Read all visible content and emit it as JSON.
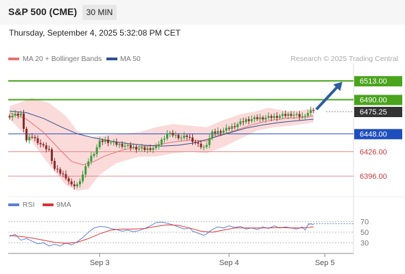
{
  "header": {
    "title": "S&P 500 (CME)",
    "timeframe": "30 MIN"
  },
  "datetime": "Thursday, September 4, 2025 5:32:08 PM CET",
  "legend": {
    "ma20_label": "MA 20 + Bollinger Bands",
    "ma50_label": "MA 50",
    "credit": "Research © 2025 Trading Central",
    "rsi_label": "RSI",
    "rsi_ma_label": "9MA"
  },
  "colors": {
    "bull": "#3a9d3a",
    "bear": "#8a2a2a",
    "ma20": "#e57373",
    "ma50": "#2d4f8f",
    "band_fill": "#fbdada",
    "resistance": "#4aa41d",
    "pivot": "#1f4fbf",
    "support": "#e88a8a",
    "current": "#333333",
    "arrow": "#2d5d9f",
    "rsi": "#5b7fd6"
  },
  "chart_data": [
    {
      "type": "candlestick",
      "title": "S&P 500 (CME)",
      "timeframe": "30 MIN",
      "x_ticks": [
        "Sep 3",
        "Sep 4",
        "Sep 5"
      ],
      "ylim": [
        6370,
        6535
      ],
      "levels": [
        {
          "value": 6513.0,
          "label": "6513.00",
          "kind": "resistance"
        },
        {
          "value": 6490.0,
          "label": "6490.00",
          "kind": "resistance"
        },
        {
          "value": 6475.25,
          "label": "6475.25",
          "kind": "current"
        },
        {
          "value": 6448.0,
          "label": "6448.00",
          "kind": "pivot"
        },
        {
          "value": 6426.0,
          "label": "6426.00",
          "kind": "support"
        },
        {
          "value": 6396.0,
          "label": "6396.00",
          "kind": "support"
        }
      ],
      "series": [
        {
          "name": "MA 20 + Bollinger Bands"
        },
        {
          "name": "MA 50"
        }
      ],
      "close_path": [
        [
          0,
          6470
        ],
        [
          4,
          6472
        ],
        [
          6,
          6440
        ],
        [
          8,
          6445
        ],
        [
          12,
          6432
        ],
        [
          14,
          6428
        ],
        [
          16,
          6405
        ],
        [
          18,
          6400
        ],
        [
          20,
          6395
        ],
        [
          22,
          6384
        ],
        [
          24,
          6385
        ],
        [
          26,
          6398
        ],
        [
          28,
          6415
        ],
        [
          30,
          6425
        ],
        [
          32,
          6438
        ],
        [
          34,
          6440
        ],
        [
          37,
          6436
        ],
        [
          40,
          6434
        ],
        [
          44,
          6431
        ],
        [
          48,
          6429
        ],
        [
          52,
          6431
        ],
        [
          54,
          6440
        ],
        [
          56,
          6448
        ],
        [
          58,
          6447
        ],
        [
          61,
          6443
        ],
        [
          63,
          6445
        ],
        [
          65,
          6440
        ],
        [
          67,
          6434
        ],
        [
          69,
          6431
        ],
        [
          70,
          6436
        ],
        [
          72,
          6449
        ],
        [
          76,
          6452
        ],
        [
          80,
          6458
        ],
        [
          84,
          6465
        ],
        [
          88,
          6467
        ],
        [
          92,
          6468
        ],
        [
          96,
          6470
        ],
        [
          100,
          6472
        ],
        [
          104,
          6469
        ],
        [
          105,
          6472
        ],
        [
          108,
          6477
        ]
      ],
      "ma20_path": [
        [
          0,
          6474
        ],
        [
          6,
          6466
        ],
        [
          12,
          6450
        ],
        [
          18,
          6428
        ],
        [
          22,
          6414
        ],
        [
          26,
          6410
        ],
        [
          30,
          6414
        ],
        [
          34,
          6421
        ],
        [
          40,
          6428
        ],
        [
          46,
          6432
        ],
        [
          52,
          6434
        ],
        [
          58,
          6438
        ],
        [
          64,
          6440
        ],
        [
          70,
          6439
        ],
        [
          74,
          6446
        ],
        [
          80,
          6452
        ],
        [
          86,
          6459
        ],
        [
          92,
          6464
        ],
        [
          98,
          6467
        ],
        [
          104,
          6468
        ],
        [
          108,
          6470
        ]
      ],
      "ma50_path": [
        [
          0,
          6476
        ],
        [
          6,
          6474
        ],
        [
          12,
          6467
        ],
        [
          18,
          6457
        ],
        [
          24,
          6448
        ],
        [
          30,
          6443
        ],
        [
          36,
          6439
        ],
        [
          42,
          6436
        ],
        [
          48,
          6434
        ],
        [
          54,
          6433
        ],
        [
          60,
          6434
        ],
        [
          66,
          6437
        ],
        [
          72,
          6443
        ],
        [
          78,
          6449
        ],
        [
          84,
          6455
        ],
        [
          90,
          6459
        ],
        [
          96,
          6462
        ],
        [
          102,
          6464
        ],
        [
          108,
          6466
        ]
      ],
      "band_upper": [
        [
          0,
          6482
        ],
        [
          8,
          6492
        ],
        [
          14,
          6486
        ],
        [
          20,
          6470
        ],
        [
          24,
          6452
        ],
        [
          28,
          6444
        ],
        [
          34,
          6446
        ],
        [
          40,
          6448
        ],
        [
          46,
          6450
        ],
        [
          52,
          6456
        ],
        [
          58,
          6460
        ],
        [
          64,
          6458
        ],
        [
          70,
          6456
        ],
        [
          76,
          6465
        ],
        [
          82,
          6472
        ],
        [
          88,
          6476
        ],
        [
          92,
          6480
        ],
        [
          98,
          6476
        ],
        [
          104,
          6477
        ],
        [
          108,
          6480
        ]
      ],
      "band_lower": [
        [
          0,
          6466
        ],
        [
          8,
          6438
        ],
        [
          14,
          6410
        ],
        [
          20,
          6385
        ],
        [
          24,
          6378
        ],
        [
          28,
          6380
        ],
        [
          32,
          6398
        ],
        [
          38,
          6412
        ],
        [
          46,
          6420
        ],
        [
          52,
          6420
        ],
        [
          58,
          6424
        ],
        [
          64,
          6426
        ],
        [
          70,
          6424
        ],
        [
          76,
          6432
        ],
        [
          82,
          6442
        ],
        [
          88,
          6452
        ],
        [
          94,
          6456
        ],
        [
          100,
          6458
        ],
        [
          104,
          6460
        ],
        [
          108,
          6462
        ]
      ],
      "forecast_arrow": {
        "from": [
          108,
          6478
        ],
        "to": [
          118,
          6512
        ]
      }
    },
    {
      "type": "line",
      "title": "RSI",
      "ylim": [
        15,
        85
      ],
      "y_ticks": [
        70,
        50,
        30
      ],
      "series": [
        {
          "name": "RSI",
          "points": [
            [
              0,
              42
            ],
            [
              2,
              46
            ],
            [
              3,
              40
            ],
            [
              4,
              35
            ],
            [
              6,
              38
            ],
            [
              8,
              33
            ],
            [
              10,
              28
            ],
            [
              12,
              30
            ],
            [
              14,
              24
            ],
            [
              16,
              27
            ],
            [
              18,
              24
            ],
            [
              20,
              30
            ],
            [
              22,
              26
            ],
            [
              24,
              32
            ],
            [
              26,
              40
            ],
            [
              28,
              50
            ],
            [
              30,
              58
            ],
            [
              32,
              61
            ],
            [
              34,
              60
            ],
            [
              36,
              57
            ],
            [
              38,
              55
            ],
            [
              40,
              52
            ],
            [
              42,
              54
            ],
            [
              44,
              51
            ],
            [
              46,
              53
            ],
            [
              48,
              57
            ],
            [
              50,
              62
            ],
            [
              52,
              68
            ],
            [
              54,
              69
            ],
            [
              56,
              67
            ],
            [
              58,
              64
            ],
            [
              60,
              60
            ],
            [
              62,
              56
            ],
            [
              64,
              58
            ],
            [
              65,
              52
            ],
            [
              67,
              48
            ],
            [
              69,
              44
            ],
            [
              70,
              47
            ],
            [
              72,
              55
            ],
            [
              74,
              60
            ],
            [
              76,
              58
            ],
            [
              78,
              62
            ],
            [
              80,
              59
            ],
            [
              82,
              61
            ],
            [
              84,
              56
            ],
            [
              86,
              58
            ],
            [
              88,
              55
            ],
            [
              90,
              60
            ],
            [
              92,
              57
            ],
            [
              94,
              62
            ],
            [
              96,
              58
            ],
            [
              98,
              60
            ],
            [
              100,
              58
            ],
            [
              102,
              56
            ],
            [
              104,
              60
            ],
            [
              105,
              54
            ],
            [
              106,
              64
            ],
            [
              107,
              66
            ],
            [
              108,
              64
            ]
          ]
        },
        {
          "name": "9MA",
          "points": [
            [
              0,
              44
            ],
            [
              4,
              42
            ],
            [
              8,
              39
            ],
            [
              12,
              35
            ],
            [
              16,
              31
            ],
            [
              20,
              29
            ],
            [
              24,
              31
            ],
            [
              28,
              38
            ],
            [
              32,
              47
            ],
            [
              36,
              54
            ],
            [
              40,
              56
            ],
            [
              44,
              56
            ],
            [
              48,
              57
            ],
            [
              52,
              61
            ],
            [
              56,
              64
            ],
            [
              60,
              63
            ],
            [
              64,
              58
            ],
            [
              68,
              52
            ],
            [
              72,
              50
            ],
            [
              76,
              54
            ],
            [
              80,
              58
            ],
            [
              84,
              58
            ],
            [
              88,
              58
            ],
            [
              92,
              58
            ],
            [
              96,
              59
            ],
            [
              100,
              58
            ],
            [
              104,
              58
            ],
            [
              108,
              60
            ]
          ]
        }
      ],
      "current_value_dotted": 66
    }
  ]
}
